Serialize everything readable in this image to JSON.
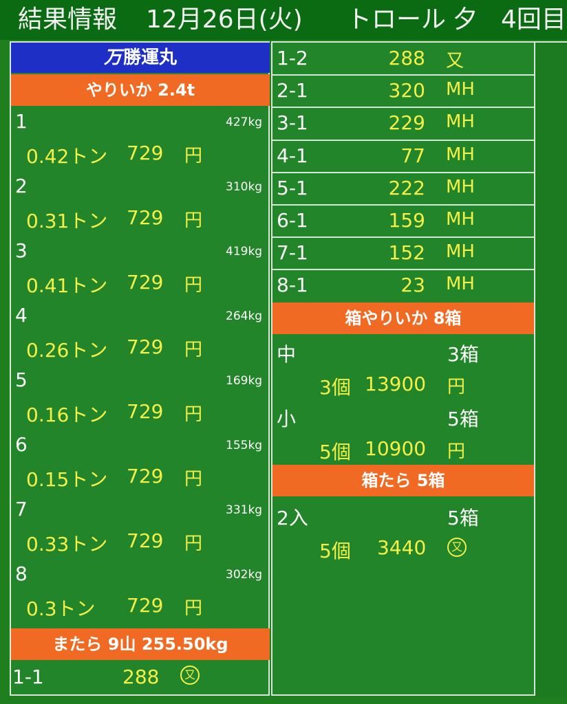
{
  "header": {
    "title": "結果情報",
    "date": "12月26日(火)",
    "method": "トロール",
    "time": "夕",
    "round": "4回目"
  },
  "left": {
    "boat": "勝運丸",
    "boat_mark": "万",
    "section1": "やりいか 2.4t",
    "lots": [
      {
        "no": "1",
        "weight": "427kg",
        "tons": "0.42トン",
        "price": "729",
        "unit": "円"
      },
      {
        "no": "2",
        "weight": "310kg",
        "tons": "0.31トン",
        "price": "729",
        "unit": "円"
      },
      {
        "no": "3",
        "weight": "419kg",
        "tons": "0.41トン",
        "price": "729",
        "unit": "円"
      },
      {
        "no": "4",
        "weight": "264kg",
        "tons": "0.26トン",
        "price": "729",
        "unit": "円"
      },
      {
        "no": "5",
        "weight": "169kg",
        "tons": "0.16トン",
        "price": "729",
        "unit": "円"
      },
      {
        "no": "6",
        "weight": "155kg",
        "tons": "0.15トン",
        "price": "729",
        "unit": "円"
      },
      {
        "no": "7",
        "weight": "331kg",
        "tons": "0.33トン",
        "price": "729",
        "unit": "円"
      },
      {
        "no": "8",
        "weight": "302kg",
        "tons": "0.3トン",
        "price": "729",
        "unit": "円"
      }
    ],
    "section2": "またら 9山 255.50kg",
    "last_row": {
      "no": "1-1",
      "price": "288",
      "unit": "又"
    }
  },
  "right": {
    "rows": [
      {
        "no": "1-2",
        "price": "288",
        "unit": "又"
      },
      {
        "no": "2-1",
        "price": "320",
        "unit": "MH"
      },
      {
        "no": "3-1",
        "price": "229",
        "unit": "MH"
      },
      {
        "no": "4-1",
        "price": "77",
        "unit": "MH"
      },
      {
        "no": "5-1",
        "price": "222",
        "unit": "MH"
      },
      {
        "no": "6-1",
        "price": "159",
        "unit": "MH"
      },
      {
        "no": "7-1",
        "price": "152",
        "unit": "MH"
      },
      {
        "no": "8-1",
        "price": "23",
        "unit": "MH"
      }
    ],
    "section1": "箱やりいか 8箱",
    "box_rows": [
      {
        "size": "中",
        "boxes": "3箱",
        "count": "3個",
        "price": "13900",
        "unit": "円"
      },
      {
        "size": "小",
        "boxes": "5箱",
        "count": "5個",
        "price": "10900",
        "unit": "円"
      }
    ],
    "section2": "箱たら 5箱",
    "cod_row": {
      "size": "2入",
      "boxes": "5箱",
      "count": "5個",
      "price": "3440",
      "unit": "又"
    }
  }
}
